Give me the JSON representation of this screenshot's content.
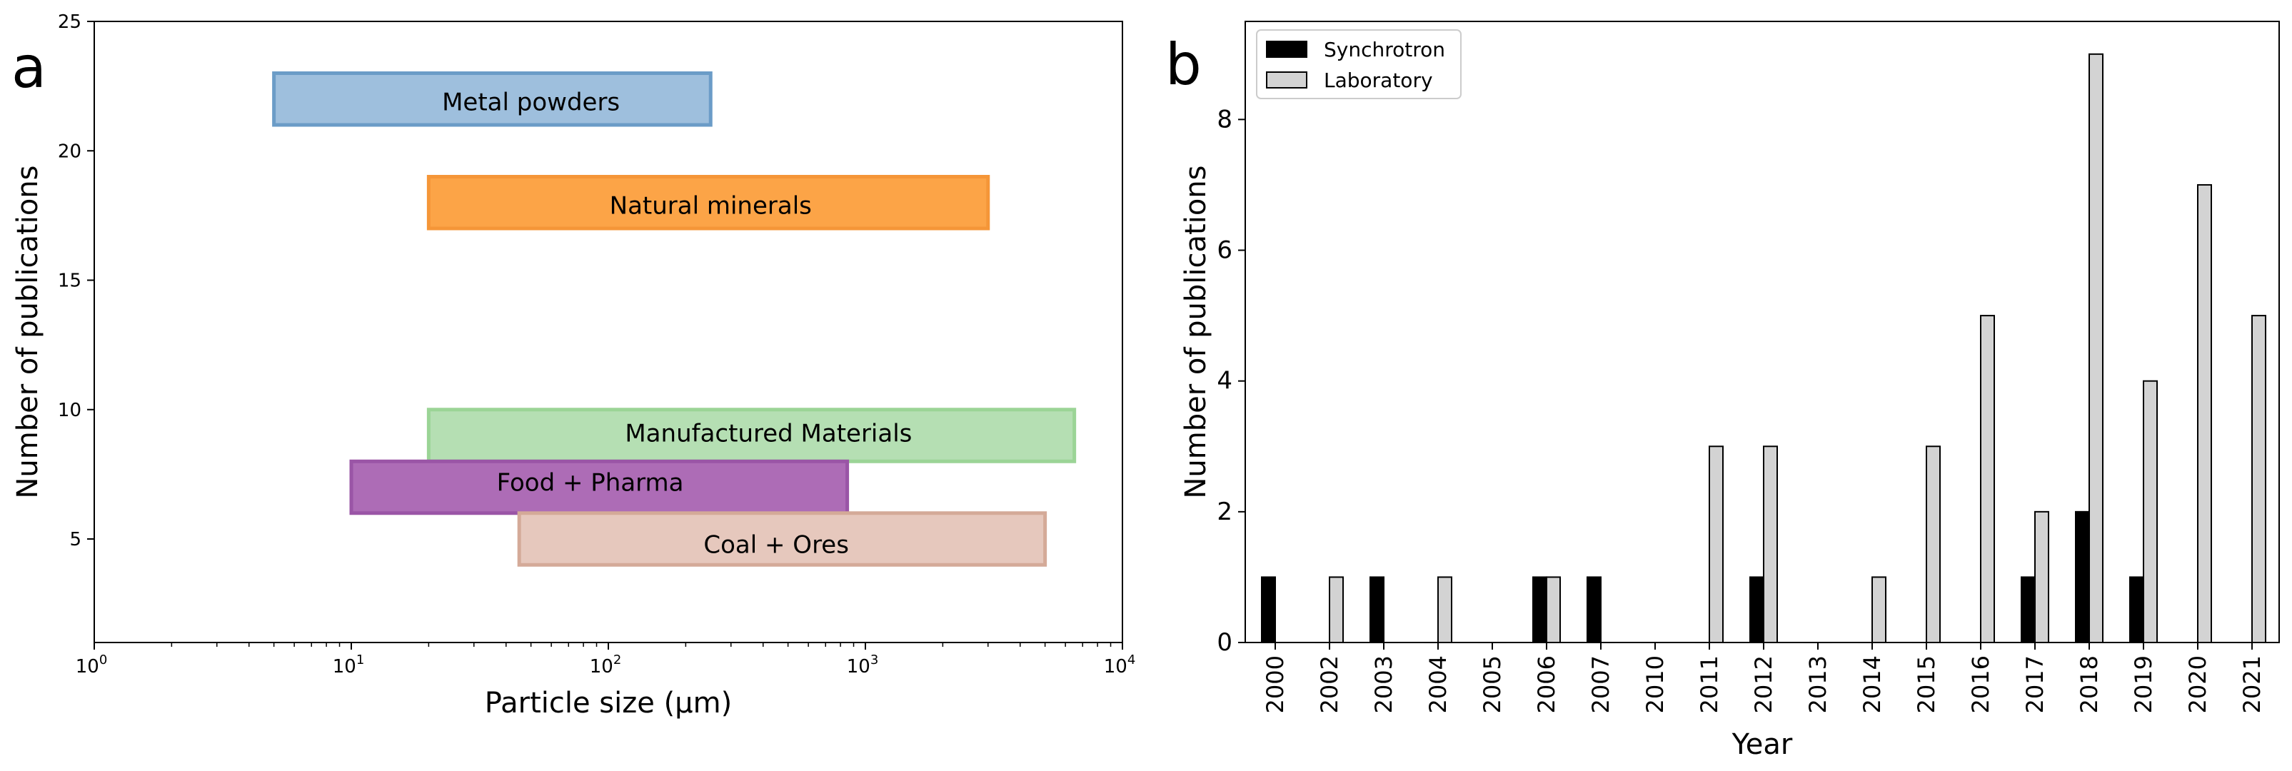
{
  "chart_data": [
    {
      "panel": "a",
      "type": "range-bar",
      "xlabel": "Particle size (µm)",
      "ylabel": "Number of publications",
      "xscale": "log",
      "xlim": [
        1,
        10000
      ],
      "ylim": [
        1,
        25
      ],
      "xticks": [
        {
          "value": 1,
          "base": "10",
          "exp": "0"
        },
        {
          "value": 10,
          "base": "10",
          "exp": "1"
        },
        {
          "value": 100,
          "base": "10",
          "exp": "2"
        },
        {
          "value": 1000,
          "base": "10",
          "exp": "3"
        },
        {
          "value": 10000,
          "base": "10",
          "exp": "4"
        }
      ],
      "yticks": [
        5,
        10,
        15,
        20,
        25
      ],
      "ytick_labels": [
        "5",
        "10",
        "15",
        "20",
        "25"
      ],
      "series": [
        {
          "name": "Metal powders",
          "x_min": 5,
          "x_max": 250,
          "y_min": 21,
          "y_max": 23,
          "color": "#9ebfdd",
          "edge": "#6b9cc7",
          "label_x": 50,
          "label_y": 21.9
        },
        {
          "name": "Natural minerals",
          "x_min": 20,
          "x_max": 3000,
          "y_min": 17,
          "y_max": 19,
          "color": "#fca447",
          "edge": "#f59638",
          "label_x": 250,
          "label_y": 17.9
        },
        {
          "name": "Manufactured Materials",
          "x_min": 20,
          "x_max": 6500,
          "y_min": 8,
          "y_max": 10,
          "color": "#b5dfb3",
          "edge": "#9bd496",
          "label_x": 420,
          "label_y": 9.1
        },
        {
          "name": "Food + Pharma",
          "x_min": 10,
          "x_max": 850,
          "y_min": 6,
          "y_max": 8,
          "color": "#ad6cb6",
          "edge": "#9a55a6",
          "label_x": 85,
          "label_y": 7.2
        },
        {
          "name": "Coal + Ores",
          "x_min": 45,
          "x_max": 5000,
          "y_min": 4,
          "y_max": 6,
          "color": "#e6c8bd",
          "edge": "#d4aa98",
          "label_x": 450,
          "label_y": 4.8
        }
      ]
    },
    {
      "panel": "b",
      "type": "bar",
      "xlabel": "Year",
      "ylabel": "Number of publications",
      "ylim": [
        0,
        9.5
      ],
      "yticks": [
        0,
        2,
        4,
        6,
        8
      ],
      "ytick_labels": [
        "0",
        "2",
        "4",
        "6",
        "8"
      ],
      "categories": [
        "2000",
        "2002",
        "2003",
        "2004",
        "2005",
        "2006",
        "2007",
        "2010",
        "2011",
        "2012",
        "2013",
        "2014",
        "2015",
        "2016",
        "2017",
        "2018",
        "2019",
        "2020",
        "2021"
      ],
      "series": [
        {
          "name": "Synchrotron",
          "color": "#000000",
          "values": [
            1,
            0,
            1,
            0,
            0,
            1,
            1,
            0,
            0,
            1,
            0,
            0,
            0,
            0,
            1,
            2,
            1,
            0,
            0
          ]
        },
        {
          "name": "Laboratory",
          "color": "#d3d3d3",
          "values": [
            0,
            1,
            0,
            1,
            0,
            1,
            0,
            0,
            3,
            3,
            0,
            1,
            3,
            5,
            2,
            9,
            4,
            7,
            5
          ]
        }
      ],
      "legend": "top-left"
    }
  ],
  "panels": {
    "a": {
      "label": "a"
    },
    "b": {
      "label": "b"
    }
  }
}
